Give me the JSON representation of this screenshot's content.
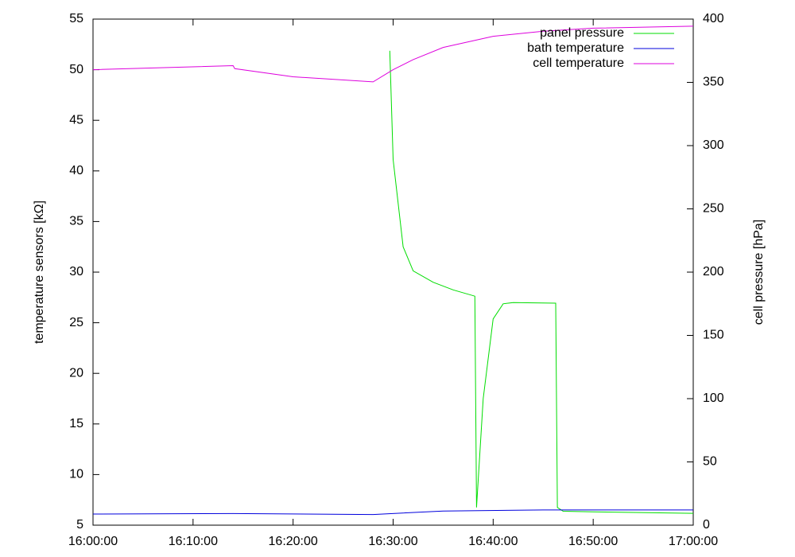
{
  "chart_data": {
    "type": "line",
    "y_label": "temperature sensors [kΩ]",
    "y2_label": "cell pressure [hPa]",
    "xlim": [
      "16:00:00",
      "17:00:00"
    ],
    "xticks": [
      "16:00:00",
      "16:10:00",
      "16:20:00",
      "16:30:00",
      "16:40:00",
      "16:50:00",
      "17:00:00"
    ],
    "ylim": [
      5,
      55
    ],
    "yticks": [
      5,
      10,
      15,
      20,
      25,
      30,
      35,
      40,
      45,
      50,
      55
    ],
    "y2lim": [
      0,
      400
    ],
    "y2ticks": [
      0,
      50,
      100,
      150,
      200,
      250,
      300,
      350,
      400
    ],
    "legend": "top-right",
    "series": [
      {
        "name": "panel pressure",
        "color": "#00dd00",
        "axis": "y2",
        "x": [
          "16:29:40",
          "16:30:00",
          "16:31:00",
          "16:32:00",
          "16:34:00",
          "16:36:00",
          "16:38:10",
          "16:38:20",
          "16:39:00",
          "16:40:00",
          "16:41:00",
          "16:42:00",
          "16:46:15",
          "16:46:25",
          "16:47:00",
          "16:50:00",
          "17:00:00"
        ],
        "values": [
          375,
          289,
          220,
          201,
          192,
          186,
          181,
          14,
          100,
          163,
          175,
          176,
          175.5,
          14,
          11,
          10.5,
          9.4
        ]
      },
      {
        "name": "bath temperature",
        "color": "#0000dd",
        "axis": "y",
        "x": [
          "16:00:00",
          "16:14:00",
          "16:28:00",
          "16:35:00",
          "16:45:00",
          "17:00:00"
        ],
        "values": [
          6.1,
          6.15,
          6.05,
          6.4,
          6.5,
          6.5
        ]
      },
      {
        "name": "cell temperature",
        "color": "#dd00dd",
        "axis": "y",
        "x": [
          "16:00:00",
          "16:14:00",
          "16:14:10",
          "16:20:00",
          "16:28:00",
          "16:30:00",
          "16:32:00",
          "16:35:00",
          "16:40:00",
          "16:45:00",
          "16:50:00",
          "17:00:00"
        ],
        "values": [
          50.0,
          50.4,
          50.1,
          49.3,
          48.8,
          50.0,
          51.0,
          52.2,
          53.3,
          53.8,
          54.1,
          54.3
        ]
      }
    ]
  }
}
